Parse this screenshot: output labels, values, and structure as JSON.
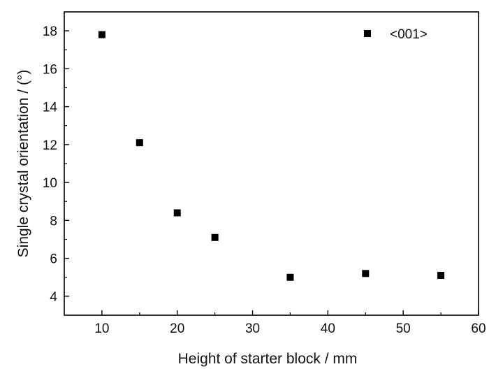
{
  "chart_data": {
    "type": "scatter",
    "xlabel": "Height of starter block / mm",
    "ylabel": "Single crystal orientation / (°)",
    "xlim": [
      5,
      60
    ],
    "ylim": [
      3,
      19
    ],
    "x_ticks": [
      10,
      20,
      30,
      40,
      50,
      60
    ],
    "y_ticks": [
      4,
      6,
      8,
      10,
      12,
      14,
      16,
      18
    ],
    "grid": false,
    "legend_position": "top-right",
    "marker": "square",
    "marker_color": "#000000",
    "series": [
      {
        "name": "<001>",
        "x": [
          10,
          15,
          20,
          25,
          35,
          45,
          55
        ],
        "y": [
          17.8,
          12.1,
          8.4,
          7.1,
          5.0,
          5.2,
          5.1
        ]
      }
    ]
  }
}
